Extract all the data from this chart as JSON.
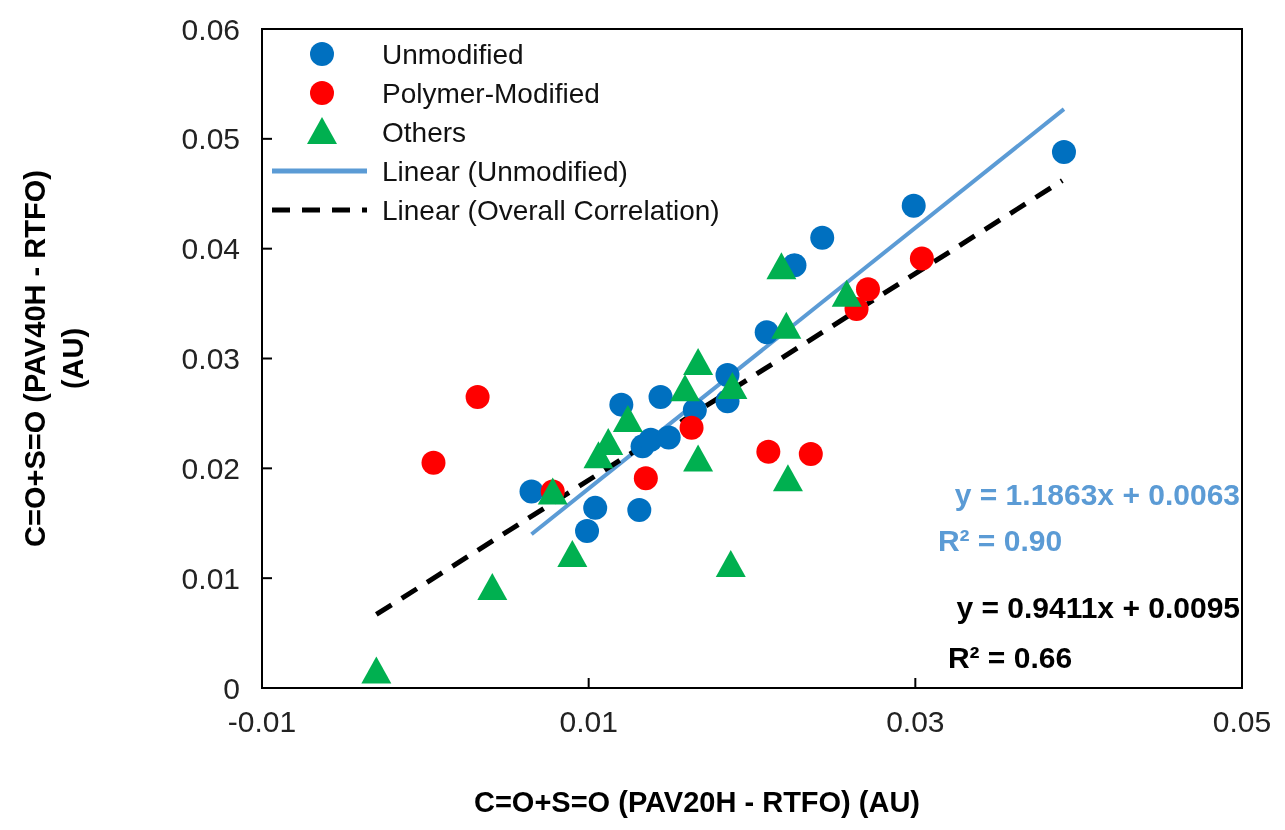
{
  "chart_data": {
    "type": "scatter",
    "xlabel": "C=O+S=O (PAV20H - RTFO) (AU)",
    "ylabel": "C=O+S=O (PAV40H - RTFO) (AU)",
    "xlim": [
      -0.01,
      0.05
    ],
    "xticks": [
      -0.01,
      0.01,
      0.03,
      0.05
    ],
    "ylim": [
      0,
      0.06
    ],
    "yticks": [
      0,
      0.01,
      0.02,
      0.03,
      0.04,
      0.05,
      0.06
    ],
    "grid": false,
    "legend": "top left",
    "series": [
      {
        "name": "Unmodified",
        "marker": "circle",
        "color": "#0070c0",
        "x": [
          0.0065,
          0.0104,
          0.0099,
          0.012,
          0.0131,
          0.0144,
          0.0133,
          0.0138,
          0.0149,
          0.0165,
          0.0185,
          0.0185,
          0.0209,
          0.0226,
          0.0243,
          0.0299,
          0.0391
        ],
        "values": [
          0.0179,
          0.0164,
          0.0143,
          0.0258,
          0.0162,
          0.0265,
          0.022,
          0.0226,
          0.0228,
          0.0253,
          0.0261,
          0.0285,
          0.0324,
          0.0385,
          0.041,
          0.0439,
          0.0488
        ]
      },
      {
        "name": "Polymer-Modified",
        "marker": "circle",
        "color": "#ff0000",
        "x": [
          0.0005,
          0.0032,
          0.0078,
          0.0135,
          0.0163,
          0.021,
          0.0236,
          0.0264,
          0.0271,
          0.0304
        ],
        "values": [
          0.0205,
          0.0265,
          0.0179,
          0.0191,
          0.0237,
          0.0215,
          0.0213,
          0.0345,
          0.0363,
          0.0391
        ]
      },
      {
        "name": "Others",
        "marker": "triangle",
        "color": "#00b050",
        "x": [
          -0.003,
          0.0041,
          0.009,
          0.0078,
          0.0106,
          0.0112,
          0.0124,
          0.0167,
          0.0159,
          0.0167,
          0.0188,
          0.0222,
          0.0187,
          0.0221,
          0.0218,
          0.0258
        ],
        "values": [
          0.0015,
          0.0091,
          0.0121,
          0.0178,
          0.0211,
          0.0223,
          0.0244,
          0.0296,
          0.0272,
          0.0208,
          0.0274,
          0.019,
          0.0112,
          0.0329,
          0.0383,
          0.0358
        ]
      },
      {
        "name": "Linear (Unmodified)",
        "type": "line",
        "marker": "none",
        "line_style": "solid",
        "color": "#5b9bd5",
        "x": [
          0.0065,
          0.0391
        ],
        "values": [
          0.014,
          0.0527
        ]
      },
      {
        "name": "Linear (Overall Correlation)",
        "type": "line",
        "marker": "none",
        "line_style": "dashed",
        "color": "#000000",
        "x": [
          -0.003,
          0.039
        ],
        "values": [
          0.0067,
          0.0462
        ]
      }
    ],
    "annotations": [
      "y = 1.1863x + 0.0063",
      "R² = 0.90",
      "y = 0.9411x + 0.0095",
      "R² = 0.66"
    ]
  }
}
